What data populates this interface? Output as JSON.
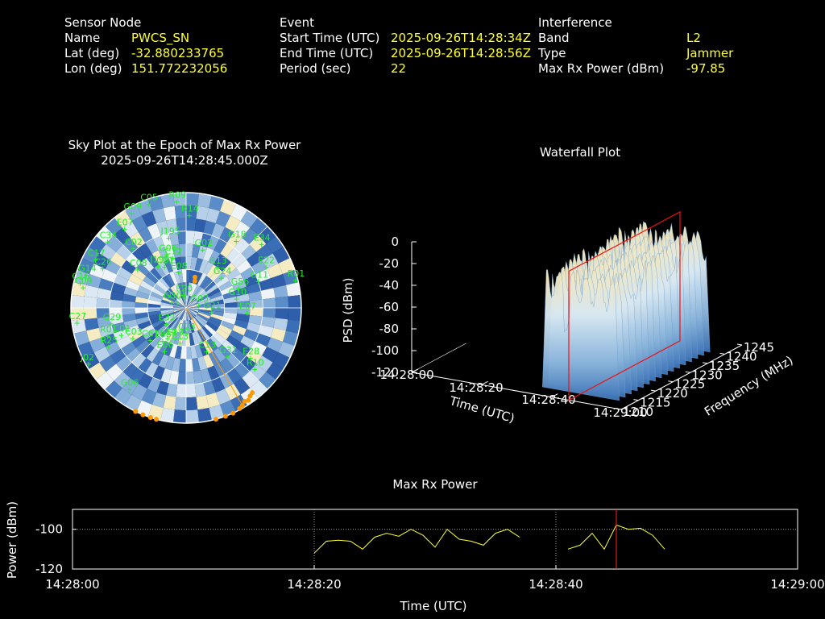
{
  "header": {
    "sensor": {
      "title": "Sensor Node",
      "name_label": "Name",
      "name_value": "PWCS_SN",
      "lat_label": "Lat (deg)",
      "lat_value": "-32.880233765",
      "lon_label": "Lon (deg)",
      "lon_value": "151.772232056"
    },
    "event": {
      "title": "Event",
      "start_label": "Start Time (UTC)",
      "start_value": "2025-09-26T14:28:34Z",
      "end_label": "End Time (UTC)",
      "end_value": "2025-09-26T14:28:56Z",
      "period_label": "Period (sec)",
      "period_value": "22"
    },
    "interference": {
      "title": "Interference",
      "band_label": "Band",
      "band_value": "L2",
      "type_label": "Type",
      "type_value": "Jammer",
      "maxrx_label": "Max Rx Power (dBm)",
      "maxrx_value": "-97.85"
    }
  },
  "chart_data": [
    {
      "type": "scatter",
      "title": "Sky Plot at the Epoch of Max Rx Power",
      "subtitle": "2025-09-26T14:28:45.000Z",
      "colors": {
        "satellite": "#22ee22",
        "jammer": "#ff9900",
        "ring": "#ffffff"
      },
      "satellites": [
        {
          "label": "G09",
          "az": 330,
          "el": 5
        },
        {
          "label": "C05",
          "az": 340,
          "el": 4
        },
        {
          "label": "R09",
          "az": 355,
          "el": 7
        },
        {
          "label": "E07",
          "az": 322,
          "el": 12
        },
        {
          "label": "R14",
          "az": 2,
          "el": 18
        },
        {
          "label": "C34",
          "az": 310,
          "el": 10
        },
        {
          "label": "C17",
          "az": 298,
          "el": 10
        },
        {
          "label": "C02",
          "az": 318,
          "el": 28
        },
        {
          "label": "J195",
          "az": 346,
          "el": 34
        },
        {
          "label": "G06",
          "az": 340,
          "el": 46
        },
        {
          "label": "C08",
          "az": 308,
          "el": 42
        },
        {
          "label": "J199",
          "az": 326,
          "el": 51
        },
        {
          "label": "G02",
          "az": 16,
          "el": 43
        },
        {
          "label": "C12",
          "az": 345,
          "el": 50
        },
        {
          "label": "C21",
          "az": 332,
          "el": 54
        },
        {
          "label": "E08",
          "az": 348,
          "el": 62
        },
        {
          "label": "G18",
          "az": 37,
          "el": 25
        },
        {
          "label": "E34",
          "az": 50,
          "el": 13
        },
        {
          "label": "E22",
          "az": 63,
          "el": 20
        },
        {
          "label": "R01",
          "az": 76,
          "el": 2
        },
        {
          "label": "C26",
          "az": 295,
          "el": 18
        },
        {
          "label": "G14",
          "az": 288,
          "el": 8
        },
        {
          "label": "C16",
          "az": 283,
          "el": 5
        },
        {
          "label": "C09",
          "az": 281,
          "el": 8
        },
        {
          "label": "G11",
          "az": 70,
          "el": 30
        },
        {
          "label": "R13",
          "az": 38,
          "el": 50
        },
        {
          "label": "G24",
          "az": 50,
          "el": 54
        },
        {
          "label": "G56",
          "az": 70,
          "el": 46
        },
        {
          "label": "G10",
          "az": 80,
          "el": 50
        },
        {
          "label": "E07",
          "az": 95,
          "el": 42
        },
        {
          "label": "J02",
          "az": 240,
          "el": 2
        },
        {
          "label": "R25",
          "az": 243,
          "el": 22
        },
        {
          "label": "R01",
          "az": 250,
          "el": 25
        },
        {
          "label": "G29",
          "az": 258,
          "el": 30
        },
        {
          "label": "C27",
          "az": 262,
          "el": 4
        },
        {
          "label": "C01",
          "az": 247,
          "el": 35
        },
        {
          "label": "C03",
          "az": 240,
          "el": 42
        },
        {
          "label": "C61",
          "az": 228,
          "el": 52
        },
        {
          "label": "E08",
          "az": 215,
          "el": 58
        },
        {
          "label": "E14",
          "az": 211,
          "el": 62
        },
        {
          "label": "E19",
          "az": 199,
          "el": 64
        },
        {
          "label": "E13",
          "az": 190,
          "el": 62
        },
        {
          "label": "E06",
          "az": 206,
          "el": 52
        },
        {
          "label": "G30",
          "az": 290,
          "el": 78
        },
        {
          "label": "G01",
          "az": 300,
          "el": 82
        },
        {
          "label": "E20",
          "az": 350,
          "el": 80
        },
        {
          "label": "G03",
          "az": 80,
          "el": 80
        },
        {
          "label": "G21",
          "az": 100,
          "el": 70
        },
        {
          "label": "C13",
          "az": 155,
          "el": 52
        },
        {
          "label": "G31",
          "az": 140,
          "el": 40
        },
        {
          "label": "E28",
          "az": 128,
          "el": 26
        },
        {
          "label": "R10",
          "az": 132,
          "el": 18
        },
        {
          "label": "G06",
          "az": 215,
          "el": 12
        },
        {
          "label": "C23",
          "az": 180,
          "el": 70
        },
        {
          "label": "E32",
          "az": 230,
          "el": 70
        }
      ],
      "jammer_track": [
        {
          "az": 150,
          "el": 2
        },
        {
          "az": 148,
          "el": 4
        },
        {
          "az": 146,
          "el": 3
        },
        {
          "az": 144,
          "el": 5
        },
        {
          "az": 142,
          "el": 6
        },
        {
          "az": 152,
          "el": 1
        },
        {
          "az": 156,
          "el": 0
        },
        {
          "az": 160,
          "el": 0
        },
        {
          "az": 165,
          "el": 0
        },
        {
          "az": 195,
          "el": 0
        },
        {
          "az": 198,
          "el": 0
        },
        {
          "az": 202,
          "el": 0
        },
        {
          "az": 206,
          "el": 0
        },
        {
          "az": 16,
          "el": 65
        },
        {
          "az": 18,
          "el": 68
        }
      ]
    },
    {
      "type": "area",
      "title": "Waterfall Plot",
      "xlabel": "Time (UTC)",
      "ylabel": "Frequency (MHz)",
      "zlabel": "PSD (dBm)",
      "x_ticks": [
        "14:28:00",
        "14:28:20",
        "14:28:40",
        "14:29:00"
      ],
      "y_ticks": [
        "1210",
        "1215",
        "1220",
        "1225",
        "1230",
        "1235",
        "1240",
        "1245"
      ],
      "z_ticks": [
        "0",
        "-20",
        "-40",
        "-60",
        "-80",
        "-100",
        "-120"
      ],
      "zlim": [
        -120,
        0
      ],
      "active_time_range": [
        "14:28:34",
        "14:28:56"
      ],
      "marker_time": "14:28:45",
      "frequency_range": [
        1210,
        1245
      ]
    },
    {
      "type": "line",
      "title": "Max Rx Power",
      "xlabel": "Time (UTC)",
      "ylabel": "Power (dBm)",
      "x_ticks": [
        "14:28:00",
        "14:28:20",
        "14:28:40",
        "14:29:00"
      ],
      "y_ticks": [
        "-100",
        "-120"
      ],
      "xlim": [
        0,
        60
      ],
      "ylim": [
        -120,
        -90
      ],
      "marker_x": 45,
      "series": [
        {
          "segments": [
            [
              [
                20,
                -112
              ],
              [
                21,
                -106
              ],
              [
                22,
                -105.5
              ],
              [
                23,
                -106
              ],
              [
                24,
                -110
              ],
              [
                25,
                -104
              ],
              [
                26,
                -102
              ],
              [
                27,
                -103.5
              ],
              [
                28,
                -100
              ],
              [
                29,
                -103
              ],
              [
                30,
                -109
              ],
              [
                31,
                -100
              ],
              [
                32,
                -105
              ],
              [
                33,
                -106
              ],
              [
                34,
                -108
              ],
              [
                35,
                -102
              ],
              [
                36,
                -100
              ],
              [
                37,
                -104
              ]
            ],
            [
              [
                41,
                -110
              ],
              [
                42,
                -108
              ],
              [
                43,
                -102
              ],
              [
                44,
                -110
              ],
              [
                45,
                -97.85
              ],
              [
                46,
                -100
              ],
              [
                47,
                -99.5
              ],
              [
                48,
                -103
              ],
              [
                49,
                -110
              ]
            ]
          ]
        }
      ],
      "colors": {
        "line": "#ffff33",
        "marker": "#ff2222",
        "axis": "#ffffff"
      }
    }
  ]
}
